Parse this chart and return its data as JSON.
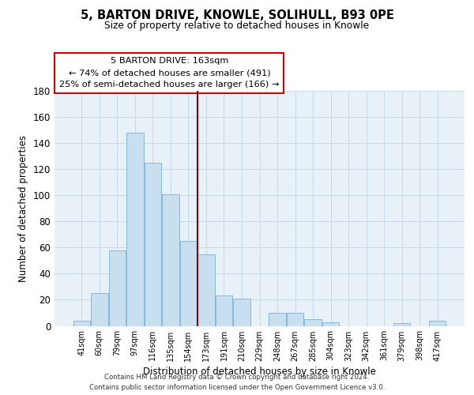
{
  "title": "5, BARTON DRIVE, KNOWLE, SOLIHULL, B93 0PE",
  "subtitle": "Size of property relative to detached houses in Knowle",
  "xlabel": "Distribution of detached houses by size in Knowle",
  "ylabel": "Number of detached properties",
  "bar_labels": [
    "41sqm",
    "60sqm",
    "79sqm",
    "97sqm",
    "116sqm",
    "135sqm",
    "154sqm",
    "173sqm",
    "191sqm",
    "210sqm",
    "229sqm",
    "248sqm",
    "267sqm",
    "285sqm",
    "304sqm",
    "323sqm",
    "342sqm",
    "361sqm",
    "379sqm",
    "398sqm",
    "417sqm"
  ],
  "bar_values": [
    4,
    25,
    58,
    148,
    125,
    101,
    65,
    55,
    23,
    21,
    0,
    10,
    10,
    5,
    3,
    0,
    0,
    0,
    2,
    0,
    4
  ],
  "bar_color": "#c8dff0",
  "bar_edge_color": "#7ab0d4",
  "highlight_line_color": "#8b0000",
  "annotation_box_text": "5 BARTON DRIVE: 163sqm\n← 74% of detached houses are smaller (491)\n25% of semi-detached houses are larger (166) →",
  "annotation_box_edge_color": "#cc0000",
  "ylim": [
    0,
    180
  ],
  "yticks": [
    0,
    20,
    40,
    60,
    80,
    100,
    120,
    140,
    160,
    180
  ],
  "footer_text": "Contains HM Land Registry data © Crown copyright and database right 2024.\nContains public sector information licensed under the Open Government Licence v3.0.",
  "background_color": "#ffffff",
  "grid_color": "#c8d8e8"
}
